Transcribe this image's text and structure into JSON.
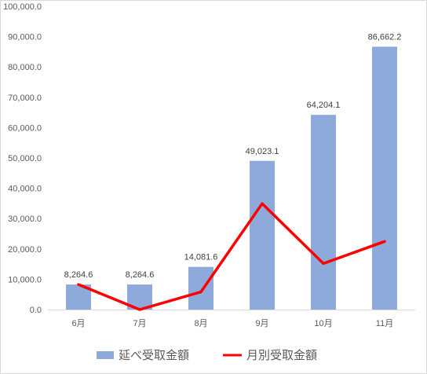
{
  "chart_data": {
    "type": "bar",
    "categories": [
      "6月",
      "7月",
      "8月",
      "9月",
      "10月",
      "11月"
    ],
    "series": [
      {
        "name": "延べ受取金額",
        "type": "bar",
        "values": [
          8264.6,
          8264.6,
          14081.6,
          49023.1,
          64204.1,
          86662.2
        ],
        "data_labels": [
          "8,264.6",
          "8,264.6",
          "14,081.6",
          "49,023.1",
          "64,204.1",
          "86,662.2"
        ]
      },
      {
        "name": "月別受取金額",
        "type": "line",
        "values": [
          8264.6,
          0,
          5817,
          34941.5,
          15181,
          22458.1
        ]
      }
    ],
    "ylim": [
      0,
      100000
    ],
    "yticks": [
      0,
      10000,
      20000,
      30000,
      40000,
      50000,
      60000,
      70000,
      80000,
      90000,
      100000
    ],
    "ytick_labels": [
      "0.0",
      "10,000.0",
      "20,000.0",
      "30,000.0",
      "40,000.0",
      "50,000.0",
      "60,000.0",
      "70,000.0",
      "80,000.0",
      "90,000.0",
      "100,000.0"
    ],
    "grid": false,
    "legend_position": "bottom",
    "colors": {
      "bar": "#8eaadb",
      "line": "#ff0000",
      "axis": "#d9d9d9"
    }
  }
}
